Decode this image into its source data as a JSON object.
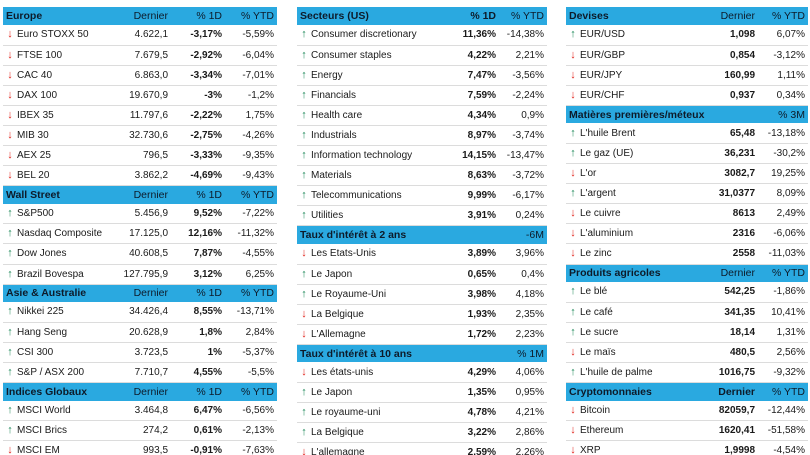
{
  "colors": {
    "header_bg": "#2aa9e0",
    "up": "#1f8a5b",
    "down": "#e0221a"
  },
  "left": [
    {
      "title": "Europe",
      "cols": [
        "Dernier",
        "% 1D",
        "% YTD"
      ],
      "rows": [
        {
          "dir": "down",
          "name": "Euro STOXX 50",
          "last": "4.622,1",
          "chg": "-3,17%",
          "ytd": "-5,59%"
        },
        {
          "dir": "down",
          "name": "FTSE 100",
          "last": "7.679,5",
          "chg": "-2,92%",
          "ytd": "-6,04%"
        },
        {
          "dir": "down",
          "name": "CAC 40",
          "last": "6.863,0",
          "chg": "-3,34%",
          "ytd": "-7,01%"
        },
        {
          "dir": "down",
          "name": "DAX 100",
          "last": "19.670,9",
          "chg": "-3%",
          "ytd": "-1,2%"
        },
        {
          "dir": "down",
          "name": "IBEX 35",
          "last": "11.797,6",
          "chg": "-2,22%",
          "ytd": "1,75%"
        },
        {
          "dir": "down",
          "name": "MIB 30",
          "last": "32.730,6",
          "chg": "-2,75%",
          "ytd": "-4,26%"
        },
        {
          "dir": "down",
          "name": "AEX 25",
          "last": "796,5",
          "chg": "-3,33%",
          "ytd": "-9,35%"
        },
        {
          "dir": "down",
          "name": "BEL 20",
          "last": "3.862,2",
          "chg": "-4,69%",
          "ytd": "-9,43%"
        }
      ]
    },
    {
      "title": "Wall Street",
      "cols": [
        "Dernier",
        "% 1D",
        "% YTD"
      ],
      "rows": [
        {
          "dir": "up",
          "name": "S&P500",
          "last": "5.456,9",
          "chg": "9,52%",
          "ytd": "-7,22%"
        },
        {
          "dir": "up",
          "name": "Nasdaq Composite",
          "last": "17.125,0",
          "chg": "12,16%",
          "ytd": "-11,32%"
        },
        {
          "dir": "up",
          "name": "Dow Jones",
          "last": "40.608,5",
          "chg": "7,87%",
          "ytd": "-4,55%"
        },
        {
          "dir": "up",
          "name": "Brazil Bovespa",
          "last": "127.795,9",
          "chg": "3,12%",
          "ytd": "6,25%"
        }
      ]
    },
    {
      "title": "Asie & Australie",
      "cols": [
        "Dernier",
        "% 1D",
        "% YTD"
      ],
      "rows": [
        {
          "dir": "up",
          "name": "Nikkei 225",
          "last": "34.426,4",
          "chg": "8,55%",
          "ytd": "-13,71%"
        },
        {
          "dir": "up",
          "name": "Hang Seng",
          "last": "20.628,9",
          "chg": "1,8%",
          "ytd": "2,84%"
        },
        {
          "dir": "up",
          "name": "CSI 300",
          "last": "3.723,5",
          "chg": "1%",
          "ytd": "-5,37%"
        },
        {
          "dir": "up",
          "name": "S&P / ASX 200",
          "last": "7.710,7",
          "chg": "4,55%",
          "ytd": "-5,5%"
        }
      ]
    },
    {
      "title": "Indices Globaux",
      "cols": [
        "Dernier",
        "% 1D",
        "% YTD"
      ],
      "rows": [
        {
          "dir": "up",
          "name": "MSCI World",
          "last": "3.464,8",
          "chg": "6,47%",
          "ytd": "-6,56%"
        },
        {
          "dir": "up",
          "name": "MSCI Brics",
          "last": "274,2",
          "chg": "0,61%",
          "ytd": "-2,13%"
        },
        {
          "dir": "down",
          "name": "MSCI EM",
          "last": "993,5",
          "chg": "-0,91%",
          "ytd": "-7,63%"
        }
      ]
    }
  ],
  "middle": [
    {
      "title": "Secteurs (US)",
      "cols": [
        "",
        "% 1D",
        "% YTD"
      ],
      "rows": [
        {
          "dir": "up",
          "name": "Consumer discretionary",
          "last": "",
          "chg": "11,36%",
          "ytd": "-14,38%"
        },
        {
          "dir": "up",
          "name": "Consumer staples",
          "last": "",
          "chg": "4,22%",
          "ytd": "2,21%"
        },
        {
          "dir": "up",
          "name": "Energy",
          "last": "",
          "chg": "7,47%",
          "ytd": "-3,56%"
        },
        {
          "dir": "up",
          "name": "Financials",
          "last": "",
          "chg": "7,59%",
          "ytd": "-2,24%"
        },
        {
          "dir": "up",
          "name": "Health care",
          "last": "",
          "chg": "4,34%",
          "ytd": "0,9%"
        },
        {
          "dir": "up",
          "name": "Industrials",
          "last": "",
          "chg": "8,97%",
          "ytd": "-3,74%"
        },
        {
          "dir": "up",
          "name": "Information technology",
          "last": "",
          "chg": "14,15%",
          "ytd": "-13,47%"
        },
        {
          "dir": "up",
          "name": "Materials",
          "last": "",
          "chg": "8,63%",
          "ytd": "-3,72%"
        },
        {
          "dir": "up",
          "name": "Telecommunications",
          "last": "",
          "chg": "9,99%",
          "ytd": "-6,17%"
        },
        {
          "dir": "up",
          "name": "Utilities",
          "last": "",
          "chg": "3,91%",
          "ytd": "0,24%"
        }
      ]
    },
    {
      "title": "Taux d'intérêt à 2 ans",
      "cols": [
        "",
        "",
        "-6M"
      ],
      "rows": [
        {
          "dir": "down",
          "name": "Les Etats-Unis",
          "last": "",
          "chg": "3,89%",
          "ytd": "3,96%"
        },
        {
          "dir": "up",
          "name": "Le Japon",
          "last": "",
          "chg": "0,65%",
          "ytd": "0,4%"
        },
        {
          "dir": "up",
          "name": "Le Royaume-Uni",
          "last": "",
          "chg": "3,98%",
          "ytd": "4,18%"
        },
        {
          "dir": "down",
          "name": "La Belgique",
          "last": "",
          "chg": "1,93%",
          "ytd": "2,35%"
        },
        {
          "dir": "down",
          "name": "L'Allemagne",
          "last": "",
          "chg": "1,72%",
          "ytd": "2,23%"
        }
      ]
    },
    {
      "title": "Taux d'intérêt à 10 ans",
      "cols": [
        "",
        "",
        "% 1M"
      ],
      "rows": [
        {
          "dir": "down",
          "name": "Les états-unis",
          "last": "",
          "chg": "4,29%",
          "ytd": "4,06%"
        },
        {
          "dir": "up",
          "name": "Le Japon",
          "last": "",
          "chg": "1,35%",
          "ytd": "0,95%"
        },
        {
          "dir": "up",
          "name": "Le royaume-uni",
          "last": "",
          "chg": "4,78%",
          "ytd": "4,21%"
        },
        {
          "dir": "up",
          "name": "La Belgique",
          "last": "",
          "chg": "3,22%",
          "ytd": "2,86%"
        },
        {
          "dir": "down",
          "name": "L'allemagne",
          "last": "",
          "chg": "2,59%",
          "ytd": "2,26%"
        }
      ]
    }
  ],
  "right": [
    {
      "title": "Devises",
      "cols": [
        "Dernier",
        "% YTD"
      ],
      "rows": [
        {
          "dir": "up",
          "name": "EUR/USD",
          "last": "1,098",
          "ytd": "6,07%"
        },
        {
          "dir": "down",
          "name": "EUR/GBP",
          "last": "0,854",
          "ytd": "-3,12%"
        },
        {
          "dir": "down",
          "name": "EUR/JPY",
          "last": "160,99",
          "ytd": "1,11%"
        },
        {
          "dir": "down",
          "name": "EUR/CHF",
          "last": "0,937",
          "ytd": "0,34%"
        }
      ]
    },
    {
      "title": "Matières premières/méteux",
      "cols": [
        "",
        "% 3M"
      ],
      "rows": [
        {
          "dir": "up",
          "name": "L'huile Brent",
          "last": "65,48",
          "ytd": "-13,18%"
        },
        {
          "dir": "up",
          "name": "Le gaz (UE)",
          "last": "36,231",
          "ytd": "-30,2%"
        },
        {
          "dir": "down",
          "name": "L'or",
          "last": "3082,7",
          "ytd": "19,25%"
        },
        {
          "dir": "up",
          "name": "L'argent",
          "last": "31,0377",
          "ytd": "8,09%"
        },
        {
          "dir": "down",
          "name": "Le cuivre",
          "last": "8613",
          "ytd": "2,49%"
        },
        {
          "dir": "down",
          "name": "L'aluminium",
          "last": "2316",
          "ytd": "-6,06%"
        },
        {
          "dir": "down",
          "name": "Le zinc",
          "last": "2558",
          "ytd": "-11,03%"
        }
      ]
    },
    {
      "title": "Produits agricoles",
      "cols": [
        "Dernier",
        "% YTD"
      ],
      "rows": [
        {
          "dir": "up",
          "name": "Le blé",
          "last": "542,25",
          "ytd": "-1,86%"
        },
        {
          "dir": "up",
          "name": "Le café",
          "last": "341,35",
          "ytd": "10,41%"
        },
        {
          "dir": "up",
          "name": "Le sucre",
          "last": "18,14",
          "ytd": "1,31%"
        },
        {
          "dir": "down",
          "name": "Le maïs",
          "last": "480,5",
          "ytd": "2,56%"
        },
        {
          "dir": "up",
          "name": "L'huile de palme",
          "last": "1016,75",
          "ytd": "-9,32%"
        }
      ]
    },
    {
      "title": "Cryptomonnaies",
      "cols": [
        "Dernier",
        "% YTD"
      ],
      "bold_cols": true,
      "rows": [
        {
          "dir": "down",
          "name": "Bitcoin",
          "last": "82059,7",
          "ytd": "-12,44%"
        },
        {
          "dir": "down",
          "name": "Ethereum",
          "last": "1620,41",
          "ytd": "-51,58%"
        },
        {
          "dir": "down",
          "name": "XRP",
          "last": "1,9998",
          "ytd": "-4,54%"
        }
      ]
    }
  ]
}
